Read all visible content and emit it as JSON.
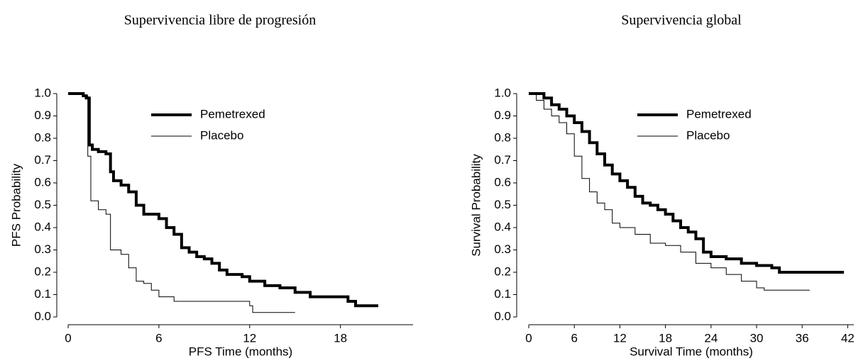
{
  "chart_data": [
    {
      "type": "line",
      "step": true,
      "title": "Supervivencia libre de progresión",
      "xlabel": "PFS Time (months)",
      "ylabel": "PFS Probability",
      "xlim": [
        0,
        22.8
      ],
      "ylim": [
        0,
        1
      ],
      "xticks": [
        0,
        6,
        12,
        18
      ],
      "yticks": [
        {
          "value": 0,
          "label": "0.0"
        },
        0.1,
        0.2,
        0.3,
        0.4,
        0.5,
        0.6,
        0.7,
        0.8,
        0.9,
        {
          "value": 1,
          "label": "1.0"
        }
      ],
      "legend": "upper center",
      "series": [
        {
          "name": "Pemetrexed",
          "color": "#000000",
          "line_width": 4,
          "x": [
            0,
            1,
            1.2,
            1.4,
            1.6,
            2,
            2.5,
            2.8,
            3,
            3.5,
            4,
            4.5,
            5,
            5.5,
            6,
            6.5,
            7,
            7.5,
            8,
            8.5,
            9,
            9.5,
            10,
            10.5,
            11,
            11.5,
            12,
            13,
            14,
            15,
            16,
            18,
            18.5,
            19,
            20.5
          ],
          "values": [
            1.0,
            0.99,
            0.98,
            0.77,
            0.75,
            0.74,
            0.73,
            0.65,
            0.61,
            0.59,
            0.56,
            0.5,
            0.46,
            0.46,
            0.44,
            0.4,
            0.37,
            0.31,
            0.29,
            0.27,
            0.26,
            0.24,
            0.21,
            0.19,
            0.19,
            0.18,
            0.16,
            0.14,
            0.13,
            0.11,
            0.09,
            0.09,
            0.07,
            0.05,
            0.05
          ]
        },
        {
          "name": "Placebo",
          "color": "#000000",
          "line_width": 1,
          "x": [
            0,
            1,
            1.3,
            1.5,
            2,
            2.5,
            2.8,
            3.5,
            4,
            4.5,
            5,
            5.5,
            6,
            7,
            12,
            12.2,
            15
          ],
          "values": [
            1.0,
            0.99,
            0.72,
            0.52,
            0.48,
            0.46,
            0.3,
            0.28,
            0.22,
            0.16,
            0.15,
            0.12,
            0.09,
            0.07,
            0.05,
            0.02,
            0.02
          ]
        }
      ]
    },
    {
      "type": "line",
      "step": true,
      "title": "Supervivencia global",
      "xlabel": "Survival Time (months)",
      "ylabel": "Survival Probability",
      "xlim": [
        0,
        42.8
      ],
      "ylim": [
        0,
        1
      ],
      "xticks": [
        0,
        6,
        12,
        18,
        24,
        30,
        36,
        42
      ],
      "yticks": [
        {
          "value": 0,
          "label": "0.0"
        },
        0.1,
        0.2,
        0.3,
        0.4,
        0.5,
        0.6,
        0.7,
        0.8,
        0.9,
        {
          "value": 1,
          "label": "1.0"
        }
      ],
      "legend": "upper center",
      "series": [
        {
          "name": "Pemetrexed",
          "color": "#000000",
          "line_width": 4,
          "x": [
            0,
            2,
            3,
            4,
            5,
            6,
            7,
            8,
            9,
            10,
            11,
            12,
            13,
            14,
            15,
            16,
            17,
            18,
            19,
            20,
            21,
            22,
            23,
            24,
            26,
            28,
            30,
            32,
            33,
            41.5
          ],
          "values": [
            1.0,
            0.98,
            0.95,
            0.93,
            0.9,
            0.87,
            0.83,
            0.78,
            0.73,
            0.68,
            0.64,
            0.61,
            0.58,
            0.54,
            0.51,
            0.5,
            0.48,
            0.46,
            0.43,
            0.4,
            0.38,
            0.35,
            0.29,
            0.27,
            0.26,
            0.24,
            0.23,
            0.22,
            0.2,
            0.2
          ]
        },
        {
          "name": "Placebo",
          "color": "#000000",
          "line_width": 1,
          "x": [
            0,
            1,
            2,
            3,
            4,
            5,
            6,
            7,
            8,
            9,
            10,
            11,
            12,
            14,
            16,
            18,
            20,
            22,
            24,
            26,
            28,
            30,
            31,
            37
          ],
          "values": [
            1.0,
            0.97,
            0.93,
            0.9,
            0.87,
            0.82,
            0.72,
            0.62,
            0.56,
            0.51,
            0.48,
            0.42,
            0.4,
            0.37,
            0.33,
            0.32,
            0.29,
            0.24,
            0.22,
            0.19,
            0.16,
            0.13,
            0.12,
            0.12
          ]
        }
      ]
    }
  ]
}
